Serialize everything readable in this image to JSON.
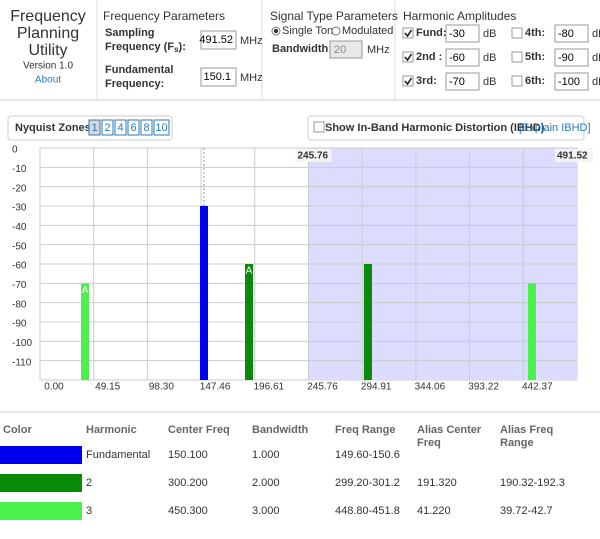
{
  "header": {
    "title_lines": [
      "Frequency",
      "Planning",
      "Utility"
    ],
    "version": "Version 1.0",
    "about": "About"
  },
  "frequency_parameters": {
    "title": "Frequency Parameters",
    "sampling_label": [
      "Sampling",
      "Frequency (F",
      "s",
      "):"
    ],
    "sampling_value": "491.52",
    "sampling_unit": "MHz",
    "fundamental_label": [
      "Fundamental",
      "Frequency:"
    ],
    "fundamental_value": "150.1",
    "fundamental_unit": "MHz"
  },
  "signal_type": {
    "title": "Signal Type Parameters",
    "options": [
      "Single Tone",
      "Modulated"
    ],
    "selected": 0,
    "bandwidth_label": "Bandwidth:",
    "bandwidth_value": "20",
    "bandwidth_unit": "MHz"
  },
  "harmonic_amplitudes": {
    "title": "Harmonic Amplitudes",
    "rows": [
      {
        "label": "Fund:",
        "checked": true,
        "value": "-30",
        "unit": "dB"
      },
      {
        "label": "2nd :",
        "checked": true,
        "value": "-60",
        "unit": "dB"
      },
      {
        "label": "3rd:",
        "checked": true,
        "value": "-70",
        "unit": "dB"
      },
      {
        "label": "4th:",
        "checked": false,
        "value": "-80",
        "unit": "dB"
      },
      {
        "label": "5th:",
        "checked": false,
        "value": "-90",
        "unit": "dB"
      },
      {
        "label": "6th:",
        "checked": false,
        "value": "-100",
        "unit": "dB"
      }
    ]
  },
  "nyquist": {
    "label": "Nyquist Zones:",
    "zones": [
      "1",
      "2",
      "4",
      "6",
      "8",
      "10"
    ],
    "selected": 0,
    "ibhd_label": "Show In-Band Harmonic Distortion (IBHD)",
    "ibhd_checked": false,
    "ibhd_link": "[Explain IBHD]"
  },
  "chart_data": {
    "type": "bar",
    "xlim": [
      0,
      491.52
    ],
    "xticks": [
      {
        "value": 0,
        "label": "0.00"
      },
      {
        "value": 49.152,
        "label": "49.15"
      },
      {
        "value": 98.304,
        "label": "98.30"
      },
      {
        "value": 147.456,
        "label": "147.46"
      },
      {
        "value": 196.608,
        "label": "196.61"
      },
      {
        "value": 245.76,
        "label": "245.76"
      },
      {
        "value": 294.912,
        "label": "294.91"
      },
      {
        "value": 344.064,
        "label": "344.06"
      },
      {
        "value": 393.216,
        "label": "393.22"
      },
      {
        "value": 442.368,
        "label": "442.37"
      }
    ],
    "ylim": [
      -120,
      0
    ],
    "yticks": [
      0,
      -10,
      -20,
      -30,
      -40,
      -50,
      -60,
      -70,
      -80,
      -90,
      -100,
      -110
    ],
    "grid": true,
    "shaded_zone": {
      "from": {
        "value": 245.76,
        "label": "245.76"
      },
      "to": {
        "value": 491.52,
        "label": "491.52"
      },
      "color": "#dcdcff"
    },
    "series": [
      {
        "name": "Fundamental",
        "color": "#0000ee",
        "x": [
          150.1
        ],
        "values": [
          -30
        ],
        "labels": [
          null
        ]
      },
      {
        "name": "2",
        "color": "#0a8a0a",
        "x": [
          300.2,
          191.32
        ],
        "values": [
          -60,
          -60
        ],
        "labels": [
          null,
          "A"
        ]
      },
      {
        "name": "3",
        "color": "#4cf04c",
        "x": [
          450.3,
          41.22
        ],
        "values": [
          -70,
          -70
        ],
        "labels": [
          null,
          "A"
        ]
      }
    ]
  },
  "table": {
    "header": [
      [
        "Color"
      ],
      [
        "Harmonic"
      ],
      [
        "Center Freq"
      ],
      [
        "Bandwidth"
      ],
      [
        "Freq Range"
      ],
      [
        "Alias Center",
        "Freq"
      ],
      [
        "Alias Freq",
        "Range"
      ]
    ],
    "rows": [
      {
        "color": "#0000ee",
        "cells": [
          "Fundamental",
          "150.100",
          "1.000",
          "149.60-150.6",
          null,
          null
        ]
      },
      {
        "color": "#0a8a0a",
        "cells": [
          "2",
          "300.200",
          "2.000",
          "299.20-301.2",
          "191.320",
          "190.32-192.3"
        ]
      },
      {
        "color": "#4cf04c",
        "cells": [
          "3",
          "450.300",
          "3.000",
          "448.80-451.8",
          "41.220",
          "39.72-42.7"
        ]
      }
    ]
  }
}
